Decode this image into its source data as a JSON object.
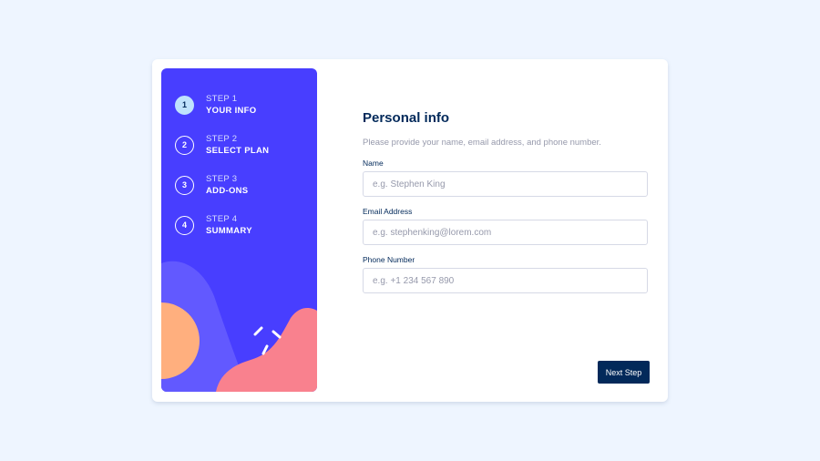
{
  "sidebar": {
    "steps": [
      {
        "number": "1",
        "label": "STEP 1",
        "title": "YOUR INFO",
        "active": true
      },
      {
        "number": "2",
        "label": "STEP 2",
        "title": "SELECT PLAN",
        "active": false
      },
      {
        "number": "3",
        "label": "STEP 3",
        "title": "ADD-ONS",
        "active": false
      },
      {
        "number": "4",
        "label": "STEP 4",
        "title": "SUMMARY",
        "active": false
      }
    ]
  },
  "form": {
    "title": "Personal info",
    "subtitle": "Please provide your name, email address, and phone number.",
    "fields": [
      {
        "label": "Name",
        "placeholder": "e.g. Stephen King",
        "value": ""
      },
      {
        "label": "Email Address",
        "placeholder": "e.g. stephenking@lorem.com",
        "value": ""
      },
      {
        "label": "Phone Number",
        "placeholder": "e.g. +1 234 567 890",
        "value": ""
      }
    ]
  },
  "actions": {
    "next_label": "Next Step"
  },
  "colors": {
    "background": "#eef5ff",
    "sidebar": "#483eff",
    "marine_blue": "#02295a",
    "active_step": "#bfe2fd",
    "orange_blob": "#ffaf7e",
    "pink_blob": "#f9818e",
    "violet_blob": "#6259ff"
  }
}
